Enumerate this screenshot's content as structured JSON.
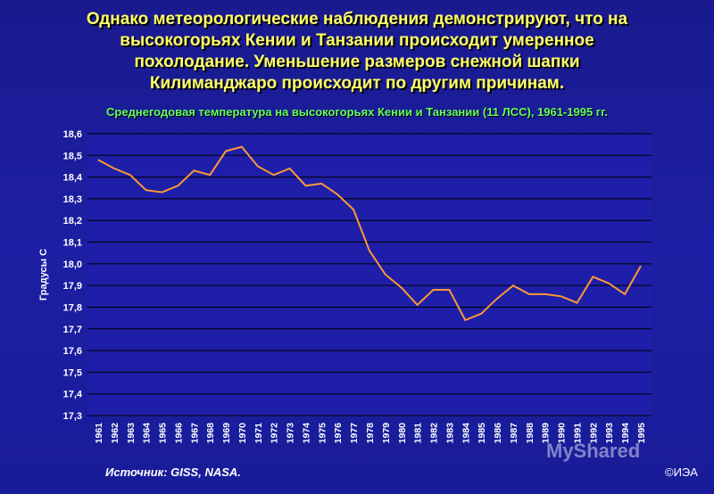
{
  "slide": {
    "headline_lines": [
      "Однако метеорологические наблюдения демонстрируют, что на",
      "высокогорьях Кении и Танзании происходит умеренное",
      "похолодание. Уменьшение размеров снежной шапки",
      "Килиманджаро происходит по другим причинам."
    ],
    "source": "Источник: GISS, NASA.",
    "copyright": "©ИЭА",
    "watermark": "MyShared"
  },
  "colors": {
    "background": "#1a1a8e",
    "plot_area": "#1e1ea8",
    "line": "#ff9933",
    "headline": "#ffff66",
    "subtitle": "#66ff66",
    "grid": "#000000"
  },
  "chart_data": {
    "type": "line",
    "title": "Среднегодовая температура на высокогорьях Кении и Танзании (11 ЛСС), 1961-1995 гг.",
    "xlabel": "",
    "ylabel": "Градусы С",
    "ylim": [
      17.3,
      18.6
    ],
    "yticks": [
      "17,3",
      "17,4",
      "17,5",
      "17,6",
      "17,7",
      "17,8",
      "17,9",
      "18,0",
      "18,1",
      "18,2",
      "18,3",
      "18,4",
      "18,5",
      "18,6"
    ],
    "grid": true,
    "categories": [
      "1961",
      "1962",
      "1963",
      "1964",
      "1965",
      "1966",
      "1967",
      "1968",
      "1969",
      "1970",
      "1971",
      "1972",
      "1973",
      "1974",
      "1975",
      "1976",
      "1977",
      "1978",
      "1979",
      "1980",
      "1981",
      "1982",
      "1983",
      "1984",
      "1985",
      "1986",
      "1987",
      "1988",
      "1989",
      "1990",
      "1991",
      "1992",
      "1993",
      "1994",
      "1995"
    ],
    "values": [
      18.48,
      18.44,
      18.41,
      18.34,
      18.33,
      18.36,
      18.43,
      18.41,
      18.52,
      18.54,
      18.45,
      18.41,
      18.44,
      18.36,
      18.37,
      18.32,
      18.25,
      18.06,
      17.95,
      17.89,
      17.81,
      17.88,
      17.88,
      17.74,
      17.77,
      17.84,
      17.9,
      17.86,
      17.86,
      17.85,
      17.82,
      17.94,
      17.91,
      17.86,
      17.99
    ]
  }
}
